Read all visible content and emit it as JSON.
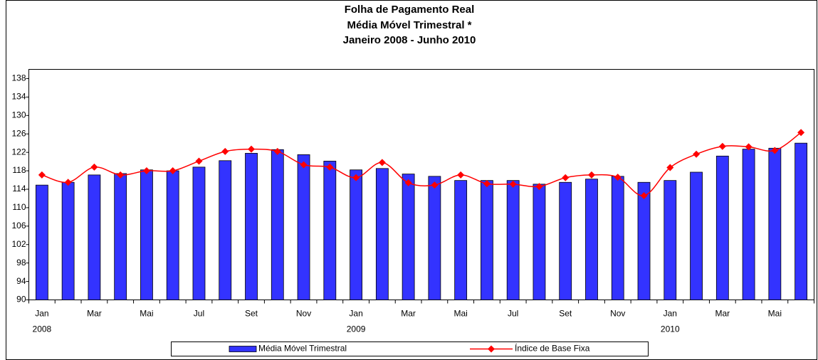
{
  "chart_data": {
    "type": "bar_line",
    "title": [
      "Folha de Pagamento Real",
      "Média Móvel Trimestral *",
      "Janeiro 2008 - Junho 2010"
    ],
    "categories": [
      "Jan",
      null,
      "Mar",
      null,
      "Mai",
      null,
      "Jul",
      null,
      "Set",
      null,
      "Nov",
      null,
      "Jan",
      null,
      "Mar",
      null,
      "Mai",
      null,
      "Jul",
      null,
      "Set",
      null,
      "Nov",
      null,
      "Jan",
      null,
      "Mar",
      null,
      "Mai",
      null
    ],
    "category_years": [
      "2008",
      null,
      null,
      null,
      null,
      null,
      null,
      null,
      null,
      null,
      null,
      null,
      "2009",
      null,
      null,
      null,
      null,
      null,
      null,
      null,
      null,
      null,
      null,
      null,
      "2010",
      null,
      null,
      null,
      null,
      null
    ],
    "series": [
      {
        "name": "Média Móvel Trimestral",
        "type": "bar",
        "color": "#3333ff",
        "values": [
          114.9,
          115.5,
          117.1,
          117.4,
          118.2,
          118.0,
          118.8,
          120.2,
          121.8,
          122.6,
          121.5,
          120.1,
          118.2,
          118.5,
          117.3,
          116.8,
          115.9,
          115.9,
          115.9,
          115.1,
          115.5,
          116.2,
          116.8,
          115.5,
          115.9,
          117.7,
          121.2,
          122.7,
          122.9,
          124.0
        ]
      },
      {
        "name": "Índice de Base Fixa",
        "type": "line",
        "color": "#ff0000",
        "values": [
          117.1,
          115.5,
          118.8,
          117.1,
          118.0,
          118.0,
          120.1,
          122.2,
          122.7,
          122.2,
          119.3,
          118.8,
          116.5,
          119.8,
          115.4,
          114.9,
          117.1,
          115.2,
          115.1,
          114.6,
          116.5,
          117.1,
          116.6,
          112.6,
          118.7,
          121.6,
          123.3,
          123.2,
          122.4,
          126.3
        ]
      }
    ],
    "ylim": [
      90,
      140
    ],
    "yticks": [
      90,
      94,
      98,
      102,
      106,
      110,
      114,
      118,
      122,
      126,
      130,
      134,
      138
    ],
    "grid": false,
    "legend": "bottom"
  }
}
